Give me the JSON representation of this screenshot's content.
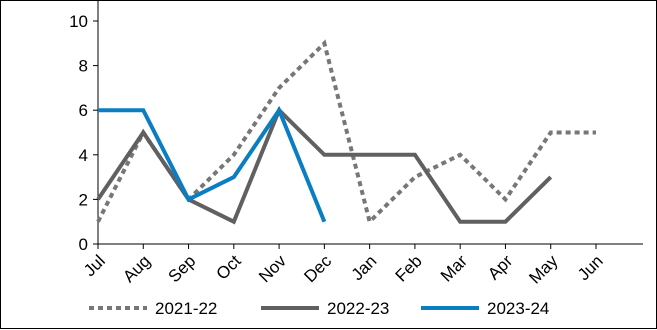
{
  "chart_data": {
    "type": "line",
    "title": "",
    "xlabel": "",
    "ylabel": "",
    "categories": [
      "Jul",
      "Aug",
      "Sep",
      "Oct",
      "Nov",
      "Dec",
      "Jan",
      "Feb",
      "Mar",
      "Apr",
      "May",
      "Jun"
    ],
    "ylim": [
      0,
      10
    ],
    "yticks": [
      0,
      2,
      4,
      6,
      8,
      10
    ],
    "y_tick_labels": [
      "0",
      "2",
      "4",
      "6",
      "8",
      "10"
    ],
    "grid": false,
    "legend_position": "bottom",
    "series": [
      {
        "name": "2021-22",
        "color": "#777777",
        "dash": "dotted",
        "values": [
          1,
          5,
          2,
          4,
          7,
          9,
          1,
          3,
          4,
          2,
          5,
          5
        ]
      },
      {
        "name": "2022-23",
        "color": "#606060",
        "dash": "solid",
        "values": [
          2,
          5,
          2,
          1,
          6,
          4,
          4,
          4,
          1,
          1,
          3,
          null
        ]
      },
      {
        "name": "2023-24",
        "color": "#0a7ec2",
        "dash": "solid",
        "values": [
          6,
          6,
          2,
          3,
          6,
          1,
          null,
          null,
          null,
          null,
          null,
          null
        ]
      }
    ]
  }
}
